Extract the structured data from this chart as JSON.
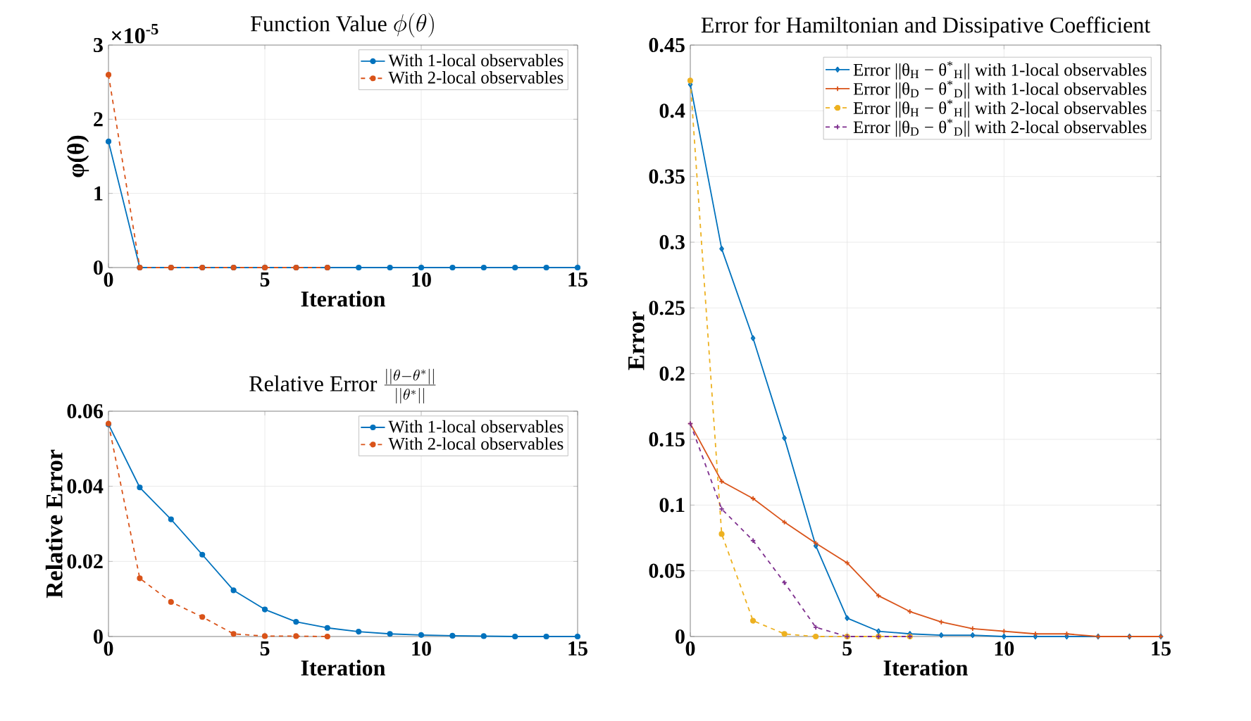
{
  "chart_data": [
    {
      "type": "line",
      "title": "\\textrm{Function Value }\\phi(\\theta)",
      "xlabel": "Iteration",
      "ylabel": "φ(θ)",
      "annotations": [
        "×10$^{-5}$"
      ],
      "x": [
        0,
        1,
        2,
        3,
        4,
        5,
        6,
        7,
        8,
        9,
        10,
        11,
        12,
        13,
        14,
        15
      ],
      "series": [
        {
          "name": "With 1-local observables",
          "color": "#0072bd",
          "marker": "circle",
          "line_style": "solid",
          "values": [
            1.7,
            0,
            0,
            0,
            0,
            0,
            0,
            0,
            0,
            0,
            0,
            0,
            0,
            0,
            0,
            0
          ]
        },
        {
          "name": "With 2-local observables",
          "color": "#d95319",
          "marker": "circle",
          "line_style": "dashed",
          "x": [
            0,
            1,
            2,
            3,
            4,
            5,
            6,
            7
          ],
          "values": [
            2.6,
            0,
            0,
            0,
            0,
            0,
            0,
            0
          ]
        }
      ],
      "xlim": [
        0,
        15
      ],
      "xticks": [
        0,
        5,
        10,
        15
      ],
      "ylim": [
        0,
        3
      ],
      "yticks": [
        0,
        1,
        2,
        3
      ],
      "grid": true,
      "legend": "top right"
    },
    {
      "type": "line",
      "title": "\\textrm{Relative Error }\\frac{||\\theta-\\theta^*||}{||\\theta^*||}",
      "xlabel": "Iteration",
      "ylabel": "Relative Error",
      "x": [
        0,
        1,
        2,
        3,
        4,
        5,
        6,
        7,
        8,
        9,
        10,
        11,
        12,
        13,
        14,
        15
      ],
      "series": [
        {
          "name": "With 1-local observables",
          "color": "#0072bd",
          "marker": "circle",
          "line_style": "solid",
          "values": [
            0.0565,
            0.0397,
            0.0312,
            0.0218,
            0.0123,
            0.0072,
            0.0039,
            0.0023,
            0.0013,
            0.0007,
            0.0004,
            0.0002,
            0.0001,
            0,
            0,
            0
          ]
        },
        {
          "name": "With 2-local observables",
          "color": "#d95319",
          "marker": "circle",
          "line_style": "dashed",
          "x": [
            0,
            1,
            2,
            3,
            4,
            5,
            6,
            7
          ],
          "values": [
            0.0567,
            0.0155,
            0.0092,
            0.0052,
            0.0007,
            0.0001,
            0.0001,
            0
          ]
        }
      ],
      "xlim": [
        0,
        15
      ],
      "xticks": [
        0,
        5,
        10,
        15
      ],
      "ylim": [
        0,
        0.06
      ],
      "yticks": [
        0,
        0.02,
        0.04,
        0.06
      ],
      "grid": true,
      "legend": "top right"
    },
    {
      "type": "line",
      "title": "\\textrm{Error for Hamiltonian and Dissipative Coefficient}",
      "xlabel": "Iteration",
      "ylabel": "Error",
      "x": [
        0,
        1,
        2,
        3,
        4,
        5,
        6,
        7,
        8,
        9,
        10,
        11,
        12,
        13,
        14,
        15
      ],
      "series": [
        {
          "name": "Error ||θ$_{H}$ − θ$^{*}$$_{H}$|| with 1-local observables",
          "color": "#0072bd",
          "marker": "diamond",
          "line_style": "solid",
          "values": [
            0.42,
            0.295,
            0.227,
            0.151,
            0.069,
            0.014,
            0.004,
            0.002,
            0.001,
            0.001,
            0,
            0,
            0,
            0,
            0,
            0
          ]
        },
        {
          "name": "Error ||θ$_{D}$ − θ$^{*}$$_{D}$|| with 1-local observables",
          "color": "#d95319",
          "marker": "cross",
          "line_style": "solid",
          "values": [
            0.162,
            0.118,
            0.105,
            0.087,
            0.071,
            0.056,
            0.031,
            0.019,
            0.011,
            0.006,
            0.004,
            0.002,
            0.002,
            0,
            0,
            0
          ]
        },
        {
          "name": "Error ||θ$_{H}$ − θ$^{*}$$_{H}$|| with 2-local observables",
          "color": "#edb120",
          "marker": "circle",
          "line_style": "dashed",
          "x": [
            0,
            1,
            2,
            3,
            4,
            5,
            6,
            7
          ],
          "values": [
            0.423,
            0.078,
            0.012,
            0.002,
            0,
            0,
            0,
            0
          ]
        },
        {
          "name": "Error ||θ$_{D}$ − θ$^{*}$$_{D}$|| with 2-local observables",
          "color": "#7e2f8e",
          "marker": "cross",
          "line_style": "dashed",
          "x": [
            0,
            1,
            2,
            3,
            4,
            5,
            6,
            7
          ],
          "values": [
            0.162,
            0.097,
            0.073,
            0.041,
            0.007,
            0,
            0,
            0
          ]
        }
      ],
      "xlim": [
        0,
        15
      ],
      "xticks": [
        0,
        5,
        10,
        15
      ],
      "ylim": [
        0,
        0.45
      ],
      "yticks": [
        0,
        0.05,
        0.1,
        0.15,
        0.2,
        0.25,
        0.3,
        0.35,
        0.4,
        0.45
      ],
      "grid": true,
      "legend": "top right"
    }
  ]
}
